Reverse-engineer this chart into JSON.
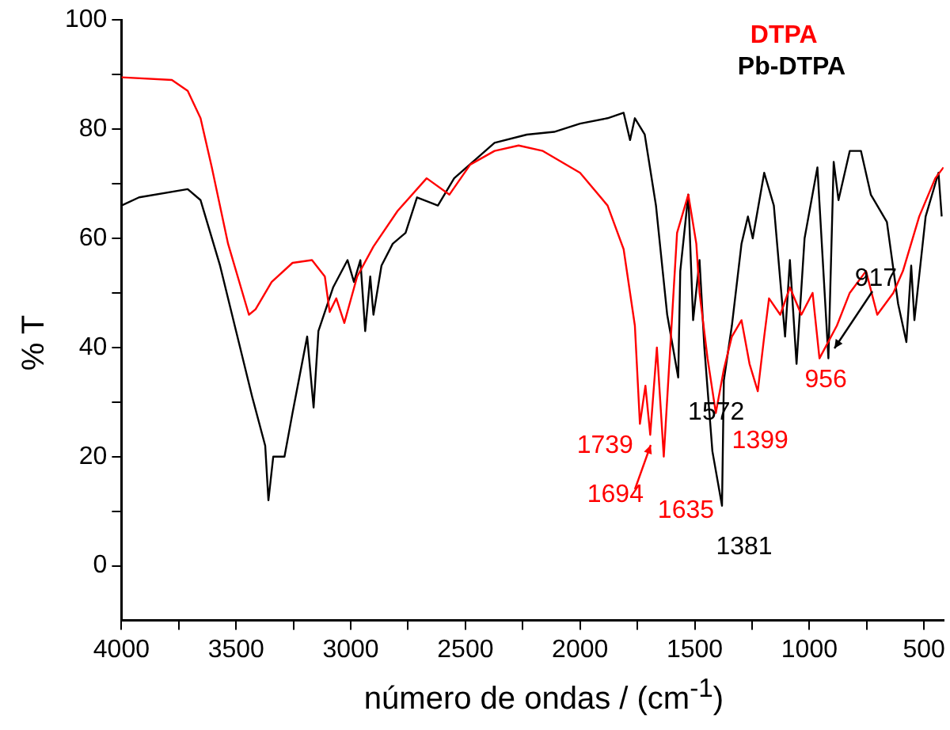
{
  "chart_data": {
    "type": "line",
    "xlabel": "número  de ondas / (cm$^{-1}$)",
    "ylabel": "% T",
    "xlim": [
      4000,
      415
    ],
    "ylim": [
      -10,
      100
    ],
    "xticks": [
      4000,
      {
        "value": 3750,
        "label": null
      },
      3500,
      {
        "value": 3250,
        "label": null
      },
      3000,
      {
        "value": 2750,
        "label": null
      },
      2500,
      {
        "value": 2250,
        "label": null
      },
      2000,
      {
        "value": 1750,
        "label": null
      },
      1500,
      {
        "value": 1250,
        "label": null
      },
      1000,
      {
        "value": 750,
        "label": null
      },
      500
    ],
    "yticks": [
      0,
      {
        "value": 10,
        "label": null
      },
      20,
      {
        "value": 30,
        "label": null
      },
      40,
      {
        "value": 50,
        "label": null
      },
      60,
      {
        "value": 70,
        "label": null
      },
      80,
      {
        "value": 90,
        "label": null
      },
      100
    ],
    "grid": false,
    "legend": "top right",
    "marker": "none",
    "line_style": "solid",
    "series": [
      {
        "name": "DTPA",
        "color": "#ff0000",
        "x": [
          4000,
          3780,
          3711,
          3655,
          3606,
          3535,
          3444,
          3415,
          3345,
          3254,
          3169,
          3113,
          3092,
          3063,
          3028,
          2972,
          2901,
          2796,
          2669,
          2570,
          2479,
          2373,
          2268,
          2162,
          2000,
          1880,
          1810,
          1761,
          1739,
          1715,
          1694,
          1665,
          1635,
          1577,
          1528,
          1493,
          1479,
          1444,
          1408,
          1373,
          1338,
          1296,
          1261,
          1225,
          1197,
          1176,
          1127,
          1085,
          1035,
          986,
          956,
          880,
          824,
          753,
          704,
          634,
          592,
          521,
          451,
          415
        ],
        "values": [
          89.5,
          89,
          87,
          82,
          73,
          59,
          46,
          47,
          52,
          55.5,
          56,
          53,
          46.5,
          49,
          44.5,
          53,
          58.5,
          65,
          71,
          68,
          73.5,
          76,
          77,
          76,
          72,
          66,
          58,
          44,
          26,
          33,
          24,
          40,
          20,
          61,
          68,
          59,
          50,
          38,
          28,
          36,
          42,
          45,
          37,
          32,
          42,
          49,
          46,
          51,
          46,
          50,
          38,
          44,
          50,
          54,
          46,
          50,
          54,
          64,
          71,
          73
        ]
      },
      {
        "name": "Pb-DTPA",
        "color": "#000000",
        "x": [
          4000,
          3923,
          3711,
          3655,
          3570,
          3500,
          3430,
          3373,
          3359,
          3338,
          3289,
          3254,
          3190,
          3162,
          3141,
          3077,
          3014,
          2986,
          2958,
          2937,
          2915,
          2901,
          2866,
          2817,
          2761,
          2711,
          2620,
          2549,
          2373,
          2232,
          2113,
          2000,
          1880,
          1810,
          1782,
          1761,
          1718,
          1669,
          1620,
          1572,
          1563,
          1528,
          1507,
          1479,
          1458,
          1423,
          1381,
          1373,
          1338,
          1296,
          1268,
          1247,
          1197,
          1155,
          1106,
          1085,
          1056,
          1021,
          965,
          917,
          894,
          873,
          824,
          775,
          732,
          662,
          613,
          577,
          556,
          542,
          493,
          437,
          423
        ],
        "values": [
          66,
          67.5,
          69,
          67,
          55,
          43,
          31,
          22,
          12,
          20,
          20,
          28,
          42,
          29,
          43,
          51,
          56,
          52,
          56,
          43,
          53,
          46,
          55,
          59,
          61,
          67.5,
          66,
          71,
          77.5,
          79,
          79.5,
          81,
          82,
          83,
          78,
          82,
          79,
          66,
          46,
          34.5,
          54,
          68,
          45,
          56,
          40,
          21,
          11,
          34,
          44,
          59,
          64,
          60,
          72,
          66,
          42,
          56,
          37,
          60,
          73,
          38,
          74,
          67,
          76,
          76,
          68,
          63,
          48,
          41,
          55,
          45,
          64,
          72,
          64
        ]
      }
    ],
    "annotations": [
      {
        "text": "1739",
        "x": 1739,
        "y": 26
      },
      {
        "text": "1694",
        "x": 1694,
        "y": 24
      },
      {
        "text": "1635",
        "x": 1635,
        "y": 20
      },
      {
        "text": "1572",
        "x": 1572,
        "y": 34.5
      },
      {
        "text": "1399",
        "x": 1408,
        "y": 28
      },
      {
        "text": "1381",
        "x": 1381,
        "y": 11
      },
      {
        "text": "956",
        "x": 956,
        "y": 38
      },
      {
        "text": "917",
        "x": 917,
        "y": 38
      }
    ]
  }
}
